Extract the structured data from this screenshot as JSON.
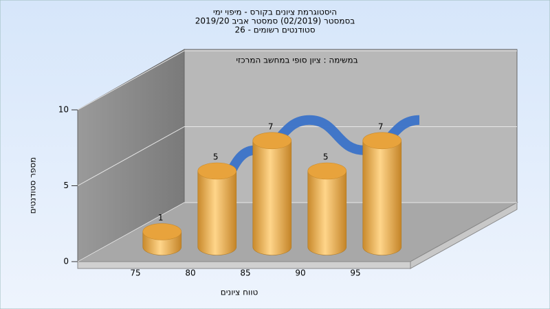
{
  "chart_data": {
    "type": "bar3d",
    "title": [
      "היסטוגרמת ציונים בקורס - מיפוי ימי",
      "בסמסטר  (02/2019)  סמסטר אביב 2019/20",
      "סטודנטים רשומים - 26"
    ],
    "subtitle": "במשימה : ציון סופי במחשב המרכזי",
    "xlabel": "טווח ציונים",
    "ylabel": "מספר סטודנטים",
    "categories": [
      "75",
      "80",
      "85",
      "90",
      "95"
    ],
    "values": [
      1,
      5,
      7,
      5,
      7
    ],
    "color": "#e8a33c",
    "line_color": "#3a72c8",
    "ylim": [
      0,
      10
    ],
    "yticks": [
      0,
      5,
      10
    ],
    "grid": true
  }
}
